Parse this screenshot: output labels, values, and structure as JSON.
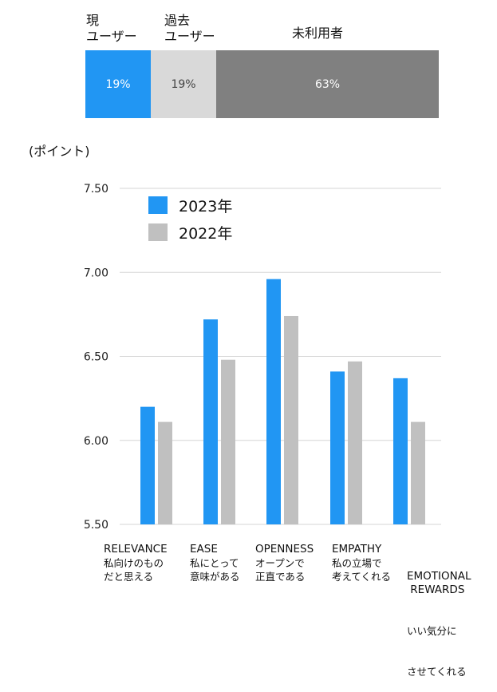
{
  "stacked_bar": {
    "segments": [
      {
        "label_line1": "現",
        "label_line2": "ユーザー",
        "value": "19%",
        "color": "#2196f3",
        "text_color": "#ffffff"
      },
      {
        "label_line1": "過去",
        "label_line2": "ユーザー",
        "value": "19%",
        "color": "#d9d9d9",
        "text_color": "#444444"
      },
      {
        "label_line1": "未利用者",
        "label_line2": "",
        "value": "63%",
        "color": "#808080",
        "text_color": "#ffffff"
      }
    ]
  },
  "chart_data": {
    "type": "bar",
    "ylabel": "(ポイント)",
    "ylim": [
      5.5,
      7.5
    ],
    "yticks": [
      "5.50",
      "6.00",
      "6.50",
      "7.00",
      "7.50"
    ],
    "grid": true,
    "legend_position": "top-left",
    "categories": [
      {
        "name": "RELEVANCE",
        "desc_line1": "私向けのもの",
        "desc_line2": "だと思える"
      },
      {
        "name": "EASE",
        "desc_line1": "私にとって",
        "desc_line2": "意味がある"
      },
      {
        "name": "OPENNESS",
        "desc_line1": "オープンで",
        "desc_line2": "正直である"
      },
      {
        "name": "EMPATHY",
        "desc_line1": "私の立場で",
        "desc_line2": "考えてくれる"
      },
      {
        "name": "EMOTIONAL\n REWARDS",
        "desc_line1": "いい気分に",
        "desc_line2": "させてくれる"
      }
    ],
    "series": [
      {
        "name": "2023年",
        "color": "#2196f3",
        "values": [
          6.2,
          6.72,
          6.96,
          6.41,
          6.37
        ]
      },
      {
        "name": "2022年",
        "color": "#c0c0c0",
        "values": [
          6.11,
          6.48,
          6.74,
          6.47,
          6.11
        ]
      }
    ]
  }
}
